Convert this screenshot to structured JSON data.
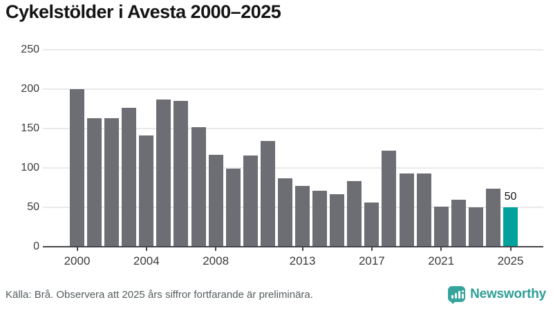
{
  "title": "Cykelstölder i Avesta 2000–2025",
  "chart_data": {
    "type": "bar",
    "title": "Cykelstölder i Avesta 2000–2025",
    "xlabel": "",
    "ylabel": "",
    "categories": [
      "2000",
      "2001",
      "2002",
      "2003",
      "2004",
      "2005",
      "2006",
      "2007",
      "2008",
      "2009",
      "2010",
      "2011",
      "2012",
      "2013",
      "2014",
      "2015",
      "2016",
      "2017",
      "2018",
      "2019",
      "2020",
      "2021",
      "2022",
      "2023",
      "2024",
      "2025"
    ],
    "values": [
      200,
      163,
      163,
      176,
      141,
      187,
      185,
      152,
      117,
      99,
      116,
      134,
      87,
      77,
      71,
      67,
      83,
      56,
      122,
      93,
      93,
      51,
      60,
      50,
      74,
      50
    ],
    "ylim": [
      0,
      250
    ],
    "yticks": [
      0,
      50,
      100,
      150,
      200,
      250
    ],
    "xtick_labels": [
      "2000",
      "2004",
      "2008",
      "2013",
      "2017",
      "2021",
      "2025"
    ],
    "grid": true,
    "legend_position": "none",
    "bar_color": "#6d6d74",
    "highlight_index": 25,
    "highlight_color": "#00a29b",
    "highlight_value_label": "50"
  },
  "footer": {
    "source": "Källa: Brå. Observera att 2025 års siffror fortfarande är preliminära.",
    "brand_name": "Newsworthy"
  },
  "colors": {
    "bar": "#6d6d74",
    "highlight": "#00a29b",
    "axis": "#44444a",
    "gridline": "#e9e9e9",
    "title_text": "#141414",
    "tick_text": "#3a3a3a",
    "source_text": "#545c5e",
    "brand_teal": "#2d9e95"
  }
}
